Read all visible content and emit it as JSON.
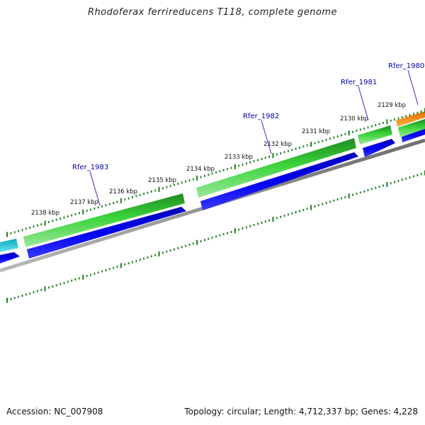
{
  "title": "Rhodoferax ferrireducens T118, complete genome",
  "footer": {
    "accession": "Accession: NC_007908",
    "summary": "Topology: circular; Length: 4,712,337 bp; Genes: 4,228"
  },
  "scale_labels": [
    {
      "text": "2138 kbp",
      "kbp": 2138
    },
    {
      "text": "2137 kbp",
      "kbp": 2137
    },
    {
      "text": "2136 kbp",
      "kbp": 2136
    },
    {
      "text": "2135 kbp",
      "kbp": 2135
    },
    {
      "text": "2134 kbp",
      "kbp": 2134
    },
    {
      "text": "2133 kbp",
      "kbp": 2133
    },
    {
      "text": "2132 kbp",
      "kbp": 2132
    },
    {
      "text": "2131 kbp",
      "kbp": 2131
    },
    {
      "text": "2130 kbp",
      "kbp": 2130
    },
    {
      "text": "2129 kbp",
      "kbp": 2129
    }
  ],
  "gene_labels": [
    {
      "text": "Rfer_1983"
    },
    {
      "text": "Rfer_1982"
    },
    {
      "text": "Rfer_1981"
    },
    {
      "text": "Rfer_1980"
    }
  ],
  "colors": {
    "cds_green": "#2db82d",
    "gene_blue": "#0000e0",
    "cyan": "#16c6dc",
    "orange": "#ff8c00",
    "backbone": "#8a8a8a",
    "tick_green": "#1e7a1e",
    "gene_label": "#0000aa"
  }
}
